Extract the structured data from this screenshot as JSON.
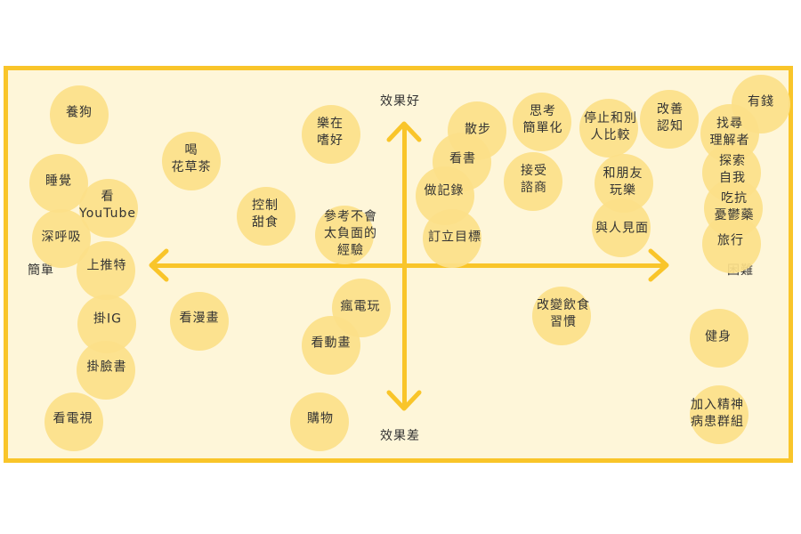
{
  "axes": {
    "top": "效果好",
    "bottom": "效果差",
    "left": "簡單",
    "right": "困難"
  },
  "chips": {
    "dog": "養狗",
    "sleep": "睡覺",
    "deepbreath": "深呼吸",
    "youtube": "看\nYouTube",
    "twitter": "上推特",
    "ig": "掛IG",
    "facebook": "掛臉書",
    "tv": "看電視",
    "herbtea": "喝\n花草茶",
    "sweets": "控制\n甜食",
    "comics": "看漫畫",
    "joy": "樂在\n嗜好",
    "negative": "參考不會\n太負面的\n經驗",
    "games": "瘋電玩",
    "anime": "看動畫",
    "shopping": "購物",
    "walk": "散步",
    "reading": "看書",
    "journal": "做記錄",
    "goals": "訂立目標",
    "simplify": "思考\n簡單化",
    "accept": "接受\n諮商",
    "stopcompare": "停止和別\n人比較",
    "friends": "和朋友\n玩樂",
    "meet": "與人見面",
    "cognition": "改善\n認知",
    "rich": "有錢",
    "understand": "找尋\n理解者",
    "explore": "探索\n自我",
    "antidep": "吃抗\n憂鬱藥",
    "travel": "旅行",
    "diet": "改變飲食\n習慣",
    "exercise": "健身",
    "group": "加入精神\n病患群組"
  }
}
